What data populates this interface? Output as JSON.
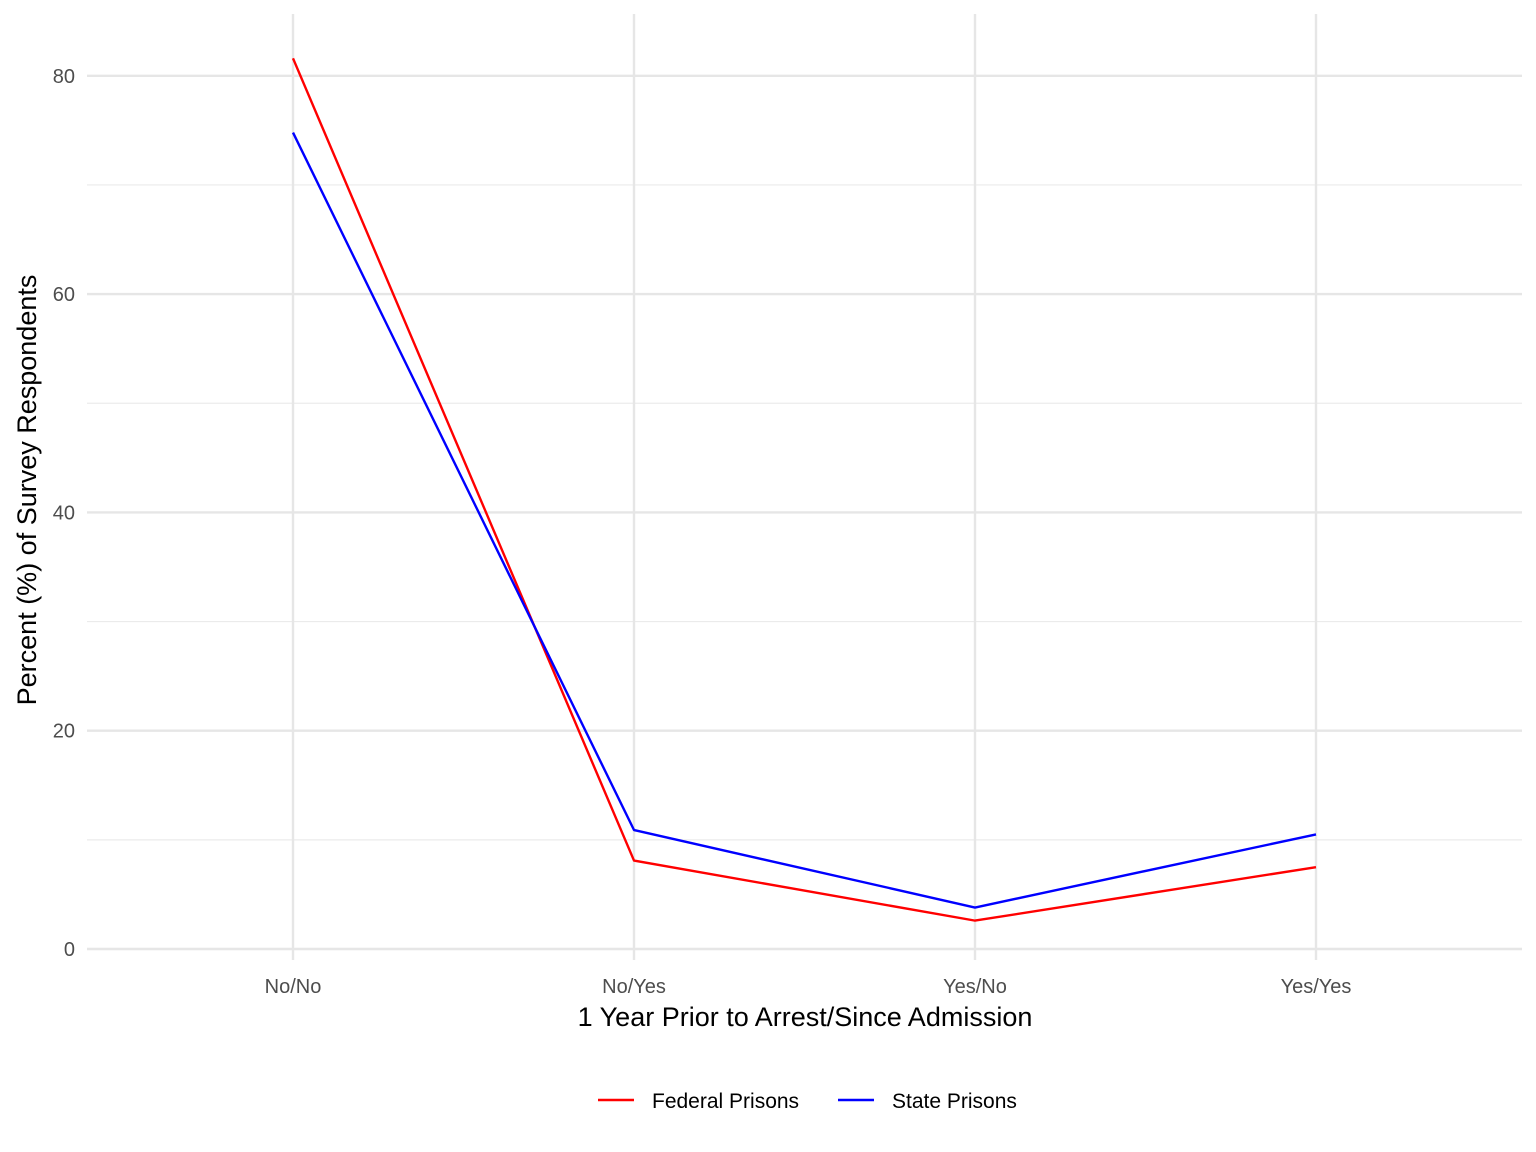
{
  "chart_data": {
    "type": "line",
    "title": "",
    "xlabel": "1 Year Prior to Arrest/Since Admission",
    "ylabel": "Percent (%) of Survey Respondents",
    "categories": [
      "No/No",
      "No/Yes",
      "Yes/No",
      "Yes/Yes"
    ],
    "ylim": [
      0,
      85
    ],
    "yticks": [
      0,
      20,
      40,
      60,
      80
    ],
    "ytick_labels": [
      "0",
      "20",
      "40",
      "60",
      "80"
    ],
    "grid": true,
    "legend_position": "bottom",
    "series": [
      {
        "name": "Federal Prisons",
        "color": "#ff0000",
        "values": [
          81.6,
          8.1,
          2.6,
          7.5
        ]
      },
      {
        "name": "State Prisons",
        "color": "#0000ff",
        "values": [
          74.8,
          10.9,
          3.8,
          10.5
        ]
      }
    ]
  }
}
